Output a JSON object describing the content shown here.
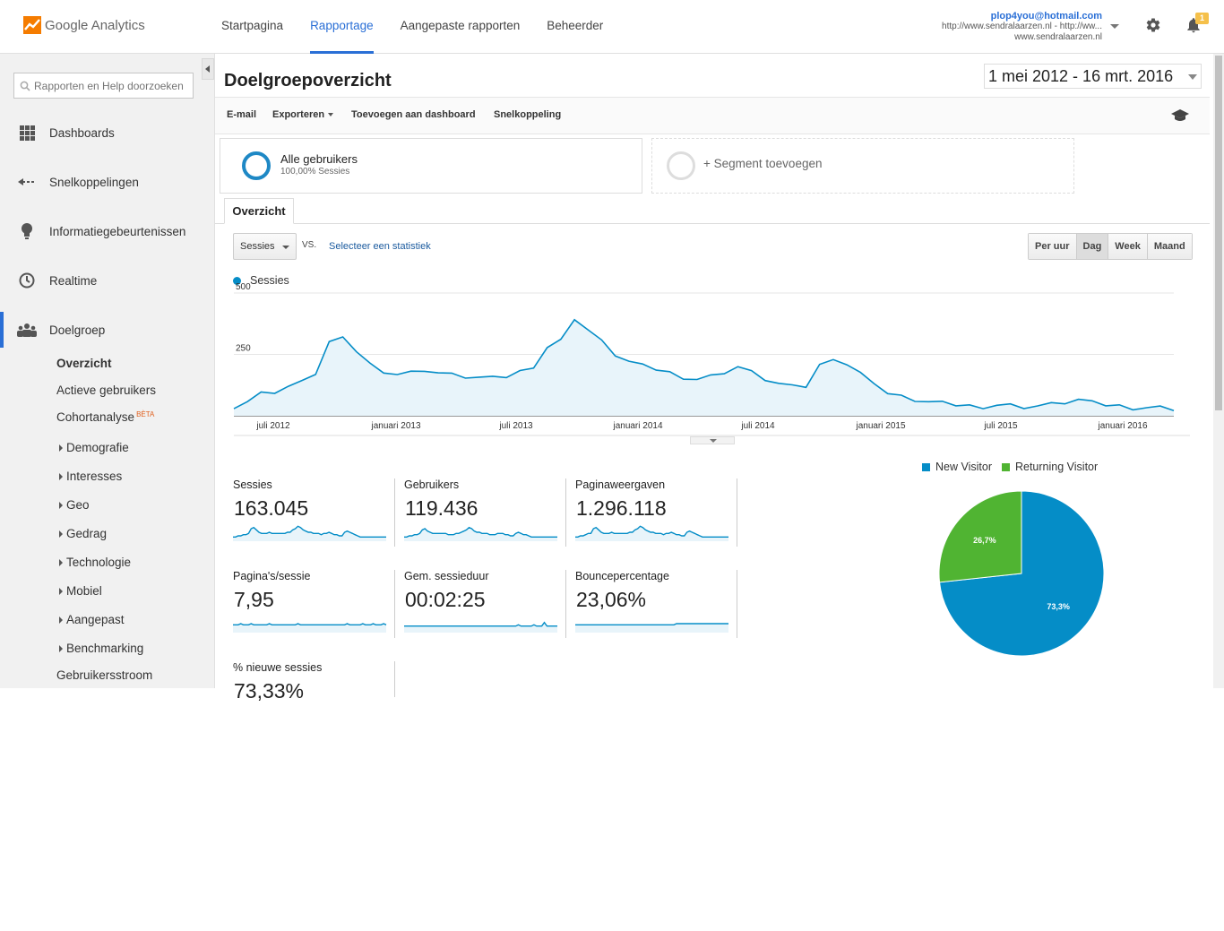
{
  "app": {
    "brand": "Google Analytics",
    "nav": [
      "Startpagina",
      "Rapportage",
      "Aangepaste rapporten",
      "Beheerder"
    ],
    "active_nav": "Rapportage",
    "account_email": "plop4you@hotmail.com",
    "account_property": "http://www.sendralaarzen.nl - http://ww...",
    "account_view": "www.sendralaarzen.nl",
    "notification_count": "1",
    "icons": [
      "gear-icon",
      "bell-icon"
    ],
    "colors": {
      "accent": "#2a6fd6",
      "series": "#058dc7",
      "returning": "#50b432"
    }
  },
  "sidebar": {
    "search_placeholder": "Rapporten en Help doorzoeken",
    "items": [
      {
        "label": "Dashboards",
        "icon": "grid-icon"
      },
      {
        "label": "Snelkoppelingen",
        "icon": "shortcut-arrow-icon"
      },
      {
        "label": "Informatiegebeurtenissen",
        "icon": "lightbulb-icon"
      },
      {
        "label": "Realtime",
        "icon": "clock-icon"
      },
      {
        "label": "Doelgroep",
        "icon": "people-icon"
      }
    ],
    "sub_items": [
      "Overzicht",
      "Actieve gebruikers",
      "Cohortanalyse",
      "Demografie",
      "Interesses",
      "Geo",
      "Gedrag",
      "Technologie",
      "Mobiel",
      "Aangepast",
      "Benchmarking",
      "Gebruikersstroom"
    ],
    "beta": "BÈTA"
  },
  "report": {
    "title": "Doelgroepoverzicht",
    "date_range": "1 mei 2012 - 16 mrt. 2016",
    "toolbar": {
      "email": "E-mail",
      "export": "Exporteren",
      "add_dashboard": "Toevoegen aan dashboard",
      "shortcut": "Snelkoppeling"
    },
    "segment": {
      "name": "Alle gebruikers",
      "share": "100,00% Sessies",
      "add": "+ Segment toevoegen"
    },
    "tab": "Overzicht",
    "metric_select": "Sessies",
    "vs": "VS.",
    "select_stat": "Selecteer een statistiek",
    "granularity": [
      "Per uur",
      "Dag",
      "Week",
      "Maand"
    ],
    "granularity_active": "Dag",
    "series_legend": "Sessies"
  },
  "chart_data": [
    {
      "type": "line",
      "series": [
        {
          "name": "Sessies",
          "values": [
            40,
            60,
            90,
            100,
            120,
            135,
            175,
            300,
            310,
            265,
            210,
            185,
            170,
            175,
            190,
            175,
            165,
            160,
            155,
            150,
            160,
            180,
            205,
            280,
            305,
            400,
            350,
            300,
            250,
            220,
            200,
            190,
            175,
            160,
            150,
            160,
            180,
            200,
            175,
            150,
            130,
            115,
            120,
            205,
            240,
            210,
            170,
            140,
            90,
            75,
            65,
            55,
            48,
            45,
            40,
            40,
            45,
            42,
            38,
            40,
            45,
            55,
            65,
            50,
            45,
            40,
            35,
            35,
            33,
            30
          ]
        }
      ],
      "x_start": "2012-05-01",
      "x_end": "2016-03-16",
      "x_tick_labels": [
        "juli 2012",
        "januari 2013",
        "juli 2013",
        "januari 2014",
        "juli 2014",
        "januari 2015",
        "juli 2015",
        "januari 2016"
      ],
      "y_tick_labels": [
        "250",
        "500"
      ],
      "ylim": [
        0,
        500
      ],
      "grid": true,
      "legend": "top-left"
    },
    {
      "type": "pie",
      "categories": [
        "New Visitor",
        "Returning Visitor"
      ],
      "values": [
        73.3,
        26.7
      ],
      "labels": [
        "73,3%",
        "26,7%"
      ],
      "colors": [
        "#058dc7",
        "#50b432"
      ],
      "legend": "top"
    }
  ],
  "metrics": [
    {
      "label": "Sessies",
      "value": "163.045",
      "spark": [
        2,
        2,
        3,
        3,
        4,
        4,
        5,
        9,
        10,
        8,
        6,
        5,
        5,
        5,
        6,
        5,
        5,
        5,
        5,
        5,
        5,
        6,
        6,
        8,
        9,
        11,
        10,
        8,
        7,
        6,
        6,
        5,
        5,
        5,
        4,
        5,
        5,
        6,
        5,
        4,
        4,
        3,
        3,
        6,
        7,
        6,
        5,
        4,
        3,
        2,
        2,
        2,
        2,
        2,
        2,
        2,
        2,
        2,
        2,
        2
      ]
    },
    {
      "label": "Gebruikers",
      "value": "119.436",
      "spark": [
        2,
        2,
        3,
        3,
        4,
        4,
        5,
        8,
        9,
        7,
        6,
        5,
        5,
        5,
        5,
        5,
        5,
        4,
        4,
        4,
        5,
        5,
        6,
        7,
        8,
        10,
        9,
        7,
        6,
        6,
        5,
        5,
        5,
        4,
        4,
        4,
        5,
        5,
        5,
        4,
        4,
        3,
        3,
        5,
        6,
        5,
        4,
        4,
        3,
        2,
        2,
        2,
        2,
        2,
        2,
        2,
        2,
        2,
        2,
        2
      ]
    },
    {
      "label": "Paginaweergaven",
      "value": "1.296.118",
      "spark": [
        2,
        2,
        3,
        3,
        4,
        5,
        5,
        9,
        10,
        8,
        6,
        5,
        5,
        5,
        6,
        5,
        5,
        5,
        5,
        5,
        5,
        6,
        6,
        8,
        9,
        11,
        10,
        8,
        7,
        6,
        6,
        5,
        5,
        5,
        4,
        5,
        5,
        6,
        5,
        4,
        4,
        3,
        3,
        6,
        7,
        6,
        5,
        4,
        3,
        2,
        2,
        2,
        2,
        2,
        2,
        2,
        2,
        2,
        2,
        2
      ]
    },
    {
      "label": "Pagina's/sessie",
      "value": "7,95",
      "spark": [
        5,
        5,
        5,
        6,
        5,
        5,
        5,
        6,
        5,
        5,
        5,
        5,
        5,
        5,
        6,
        5,
        5,
        5,
        5,
        5,
        5,
        5,
        5,
        5,
        5,
        6,
        5,
        5,
        5,
        5,
        5,
        5,
        5,
        5,
        5,
        5,
        5,
        5,
        5,
        5,
        5,
        5,
        5,
        5,
        6,
        5,
        5,
        5,
        5,
        5,
        6,
        5,
        5,
        5,
        6,
        5,
        5,
        5,
        6,
        5
      ]
    },
    {
      "label": "Gem. sessieduur",
      "value": "00:02:25",
      "spark": [
        4,
        4,
        4,
        4,
        4,
        4,
        4,
        4,
        4,
        4,
        4,
        4,
        4,
        4,
        4,
        4,
        4,
        4,
        4,
        4,
        4,
        4,
        4,
        4,
        4,
        4,
        4,
        4,
        4,
        4,
        4,
        4,
        4,
        4,
        4,
        4,
        4,
        4,
        4,
        4,
        4,
        4,
        4,
        4,
        5,
        4,
        4,
        4,
        4,
        4,
        5,
        4,
        4,
        4,
        7,
        4,
        4,
        4,
        4,
        4
      ]
    },
    {
      "label": "Bouncepercentage",
      "value": "23,06%",
      "spark": [
        5,
        5,
        5,
        5,
        5,
        5,
        5,
        5,
        5,
        5,
        5,
        5,
        5,
        5,
        5,
        5,
        5,
        5,
        5,
        5,
        5,
        5,
        5,
        5,
        5,
        5,
        5,
        5,
        5,
        5,
        5,
        5,
        5,
        5,
        5,
        5,
        5,
        5,
        5,
        6,
        6,
        6,
        6,
        6,
        6,
        6,
        6,
        6,
        6,
        6,
        6,
        6,
        6,
        6,
        6,
        6,
        6,
        6,
        6,
        6
      ]
    },
    {
      "label": "% nieuwe sessies",
      "value": "73,33%",
      "spark": []
    }
  ]
}
